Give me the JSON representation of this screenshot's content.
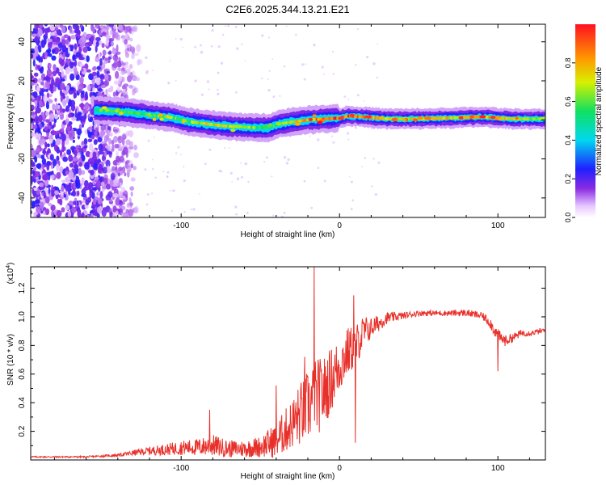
{
  "title": "C2E6.2025.344.13.21.E21",
  "colors": {
    "snr_line": "#e8302a",
    "background": "#ffffff",
    "frame": "#000000"
  },
  "chart_data": [
    {
      "type": "heatmap",
      "title": "C2E6.2025.344.13.21.E21",
      "xlabel": "Height of straight line (km)",
      "ylabel": "Frequency (Hz)",
      "xlim": [
        -195,
        130
      ],
      "ylim": [
        -50,
        49
      ],
      "xticks": [
        -100,
        0,
        100
      ],
      "xtick_labels": [
        "-100",
        "0",
        "100"
      ],
      "yticks": [
        -40,
        -20,
        0,
        20,
        40
      ],
      "ytick_labels": [
        "-40",
        "-20",
        "0",
        "20",
        "40"
      ],
      "colorbar": {
        "label": "Normalized spectral amplitude",
        "range": [
          0,
          1
        ],
        "ticks": [
          0.0,
          0.2,
          0.4,
          0.6,
          0.8
        ],
        "tick_labels": [
          "0.0",
          "0.2",
          "0.4",
          "0.6",
          "0.8"
        ],
        "colormap": "rainbow (white-violet-blue-cyan-green-yellow-orange-red)"
      },
      "ridge": {
        "description": "Dominant frequency ridge vs height",
        "x": [
          -155,
          -145,
          -135,
          -125,
          -115,
          -105,
          -95,
          -85,
          -75,
          -65,
          -55,
          -45,
          -38,
          -30,
          -20,
          -10,
          0,
          5,
          15,
          30,
          50,
          70,
          90,
          100,
          110,
          130
        ],
        "frequency": [
          5,
          4.5,
          4,
          3,
          2,
          1,
          -1,
          -2,
          -3,
          -3.5,
          -4,
          -4,
          -2,
          -1,
          0,
          0.5,
          1,
          2,
          1.5,
          0.5,
          0.5,
          1,
          1.5,
          1,
          0.5,
          0.5
        ],
        "peak_amplitude": [
          0.5,
          0.55,
          0.6,
          0.6,
          0.6,
          0.6,
          0.65,
          0.7,
          0.7,
          0.65,
          0.6,
          0.55,
          0.6,
          0.7,
          0.8,
          0.85,
          0.95,
          0.9,
          0.85,
          0.75,
          0.7,
          0.75,
          0.8,
          0.75,
          0.7,
          0.6
        ]
      },
      "noise_region": {
        "x_range": [
          -195,
          -125
        ],
        "frequency_range": [
          -50,
          49
        ],
        "amplitude_range": [
          0.05,
          0.25
        ]
      }
    },
    {
      "type": "line",
      "xlabel": "Height of straight line (km)",
      "ylabel": "SNR (10 * v/v)",
      "ylabel_multiplier": "(x10",
      "ylabel_multiplier_exp": "4",
      "ylabel_multiplier_close": ")",
      "xlim": [
        -195,
        130
      ],
      "ylim": [
        0,
        1.35
      ],
      "xticks": [
        -100,
        0,
        100
      ],
      "xtick_labels": [
        "-100",
        "0",
        "100"
      ],
      "yticks": [
        0.2,
        0.4,
        0.6,
        0.8,
        1.0,
        1.2
      ],
      "ytick_labels": [
        "0.2",
        "0.4",
        "0.6",
        "0.8",
        "1.0",
        "1.2"
      ],
      "series": [
        {
          "name": "SNR",
          "envelope_x": [
            -195,
            -160,
            -140,
            -125,
            -110,
            -100,
            -90,
            -80,
            -70,
            -60,
            -50,
            -40,
            -30,
            -25,
            -20,
            -15,
            -10,
            -5,
            0,
            5,
            10,
            15,
            20,
            30,
            40,
            50,
            60,
            70,
            80,
            90,
            95,
            100,
            105,
            110,
            115,
            120,
            130
          ],
          "envelope_baseline": [
            0.02,
            0.02,
            0.03,
            0.05,
            0.06,
            0.07,
            0.07,
            0.08,
            0.06,
            0.06,
            0.07,
            0.1,
            0.2,
            0.25,
            0.3,
            0.35,
            0.4,
            0.5,
            0.6,
            0.7,
            0.75,
            0.85,
            0.9,
            0.98,
            1.0,
            1.02,
            1.02,
            1.02,
            1.02,
            1.0,
            0.95,
            0.85,
            0.82,
            0.85,
            0.88,
            0.88,
            0.9
          ],
          "envelope_amplitude": [
            0.01,
            0.01,
            0.02,
            0.05,
            0.08,
            0.1,
            0.12,
            0.15,
            0.12,
            0.12,
            0.15,
            0.25,
            0.35,
            0.45,
            0.5,
            0.55,
            0.5,
            0.45,
            0.4,
            0.35,
            0.3,
            0.25,
            0.15,
            0.08,
            0.05,
            0.04,
            0.04,
            0.04,
            0.05,
            0.05,
            0.08,
            0.1,
            0.08,
            0.06,
            0.05,
            0.04,
            0.04
          ],
          "spikes": [
            {
              "x": -82,
              "value": 0.35
            },
            {
              "x": -40,
              "value": 0.52
            },
            {
              "x": -22,
              "value": 0.72
            },
            {
              "x": -16,
              "value": 1.35
            },
            {
              "x": 9,
              "value": 1.15
            },
            {
              "x": 10,
              "value": 0.12
            },
            {
              "x": 100,
              "value": 0.62
            }
          ]
        }
      ]
    }
  ]
}
